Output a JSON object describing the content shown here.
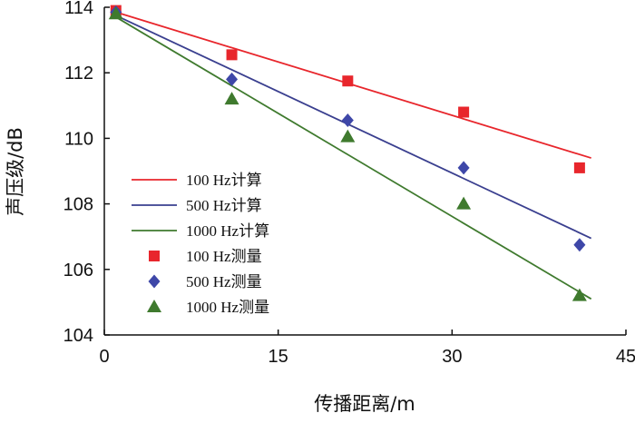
{
  "chart_data": {
    "type": "scatter",
    "xlabel": "传播距离/m",
    "ylabel": "声压级/dB",
    "xlim": [
      0,
      45
    ],
    "ylim": [
      104,
      114
    ],
    "xticks": [
      "0",
      "15",
      "30",
      "45"
    ],
    "yticks": [
      "104",
      "106",
      "108",
      "110",
      "112",
      "114"
    ],
    "grid": false,
    "legend_position": "left-center",
    "lines": [
      {
        "name": "100 Hz计算",
        "color": "#e8262c",
        "x": [
          1,
          42
        ],
        "y": [
          113.85,
          109.4
        ]
      },
      {
        "name": "500 Hz计算",
        "color": "#3a3f8f",
        "x": [
          1,
          42
        ],
        "y": [
          113.75,
          106.95
        ]
      },
      {
        "name": "1000 Hz计算",
        "color": "#3f7a2e",
        "x": [
          1,
          42
        ],
        "y": [
          113.7,
          105.1
        ]
      }
    ],
    "points": [
      {
        "name": "100 Hz测量",
        "marker": "square",
        "color": "#e8262c",
        "x": [
          1,
          11,
          21,
          31,
          41
        ],
        "y": [
          113.9,
          112.55,
          111.75,
          110.8,
          109.1
        ]
      },
      {
        "name": "500 Hz测量",
        "marker": "diamond",
        "color": "#3e47a8",
        "x": [
          1,
          11,
          21,
          31,
          41
        ],
        "y": [
          113.85,
          111.8,
          110.55,
          109.1,
          106.75
        ]
      },
      {
        "name": "1000 Hz测量",
        "marker": "triangle",
        "color": "#3f7a2e",
        "x": [
          1,
          11,
          21,
          31,
          41
        ],
        "y": [
          113.8,
          111.2,
          110.05,
          108.0,
          105.2
        ]
      }
    ]
  }
}
